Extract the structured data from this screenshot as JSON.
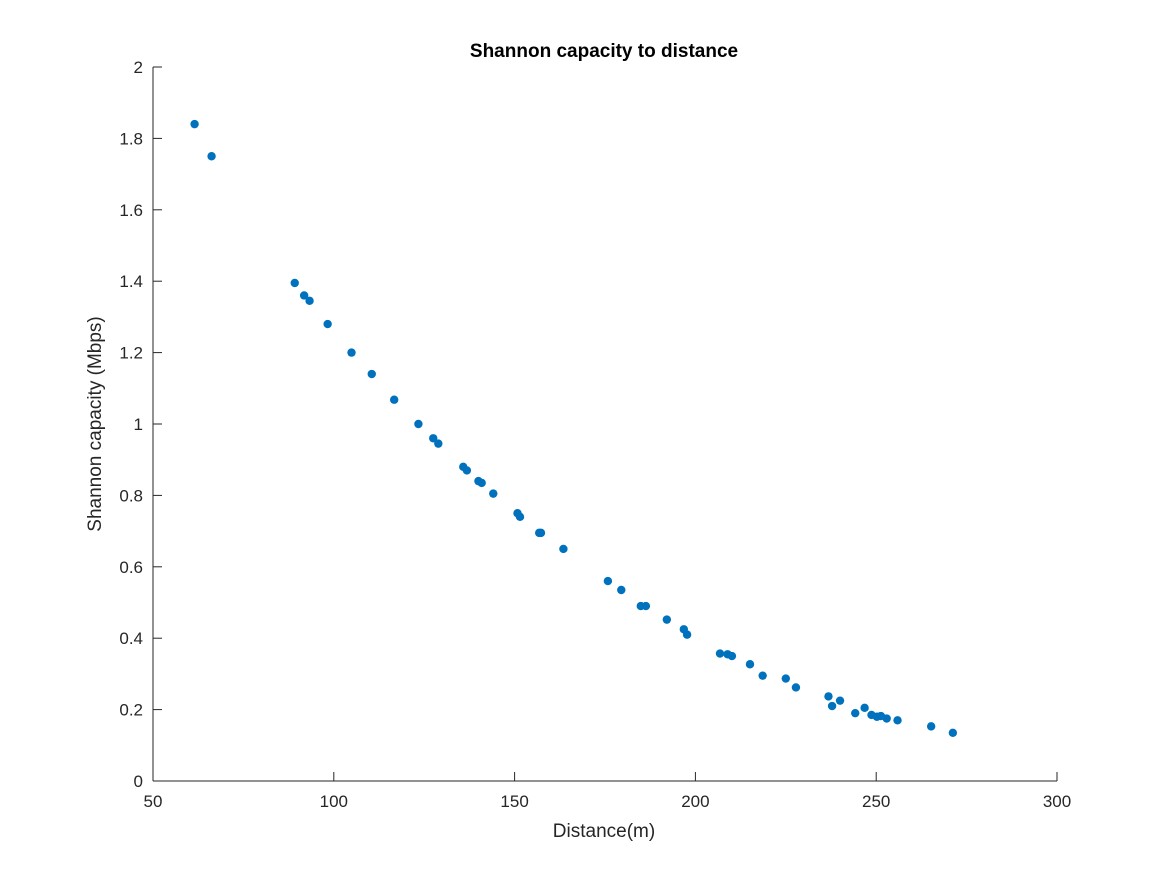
{
  "chart_data": {
    "type": "scatter",
    "title": "Shannon capacity to distance",
    "xlabel": "Distance(m)",
    "ylabel": "Shannon capacity (Mbps)",
    "xlim": [
      50,
      300
    ],
    "ylim": [
      0,
      2
    ],
    "xticks": [
      "50",
      "100",
      "150",
      "200",
      "250",
      "300"
    ],
    "yticks": [
      "0",
      "0.2",
      "0.4",
      "0.6",
      "0.8",
      "1",
      "1.2",
      "1.4",
      "1.6",
      "1.8",
      "2"
    ],
    "grid": false,
    "marker_color": "#0072BD",
    "points": [
      [
        61.5,
        1.84
      ],
      [
        66.2,
        1.75
      ],
      [
        89.2,
        1.395
      ],
      [
        91.8,
        1.36
      ],
      [
        93.3,
        1.345
      ],
      [
        98.3,
        1.28
      ],
      [
        104.9,
        1.2
      ],
      [
        110.5,
        1.14
      ],
      [
        116.7,
        1.068
      ],
      [
        123.4,
        1.0
      ],
      [
        127.5,
        0.96
      ],
      [
        128.9,
        0.945
      ],
      [
        135.8,
        0.88
      ],
      [
        136.8,
        0.87
      ],
      [
        140.0,
        0.84
      ],
      [
        140.9,
        0.835
      ],
      [
        144.1,
        0.805
      ],
      [
        150.8,
        0.75
      ],
      [
        151.5,
        0.74
      ],
      [
        156.8,
        0.695
      ],
      [
        157.3,
        0.695
      ],
      [
        163.5,
        0.65
      ],
      [
        175.8,
        0.56
      ],
      [
        179.5,
        0.535
      ],
      [
        184.9,
        0.49
      ],
      [
        186.3,
        0.49
      ],
      [
        192.1,
        0.452
      ],
      [
        196.8,
        0.425
      ],
      [
        197.7,
        0.41
      ],
      [
        206.8,
        0.357
      ],
      [
        208.9,
        0.355
      ],
      [
        210.1,
        0.35
      ],
      [
        215.1,
        0.327
      ],
      [
        218.6,
        0.295
      ],
      [
        225.0,
        0.287
      ],
      [
        227.8,
        0.262
      ],
      [
        236.8,
        0.237
      ],
      [
        237.8,
        0.21
      ],
      [
        240.0,
        0.225
      ],
      [
        244.2,
        0.19
      ],
      [
        246.8,
        0.205
      ],
      [
        248.7,
        0.185
      ],
      [
        250.2,
        0.18
      ],
      [
        251.3,
        0.182
      ],
      [
        252.9,
        0.175
      ],
      [
        255.9,
        0.17
      ],
      [
        265.2,
        0.153
      ],
      [
        271.2,
        0.135
      ]
    ]
  }
}
